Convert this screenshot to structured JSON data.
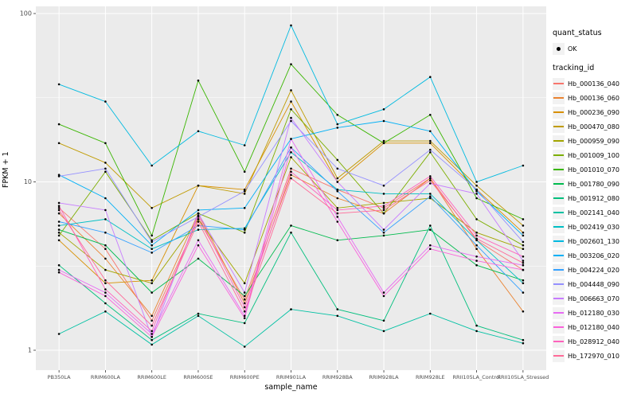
{
  "panel": {
    "bg": "#EBEBEB",
    "grid": "#FFFFFF",
    "tick_color": "#333333",
    "tick_label_color": "#4D4D4D"
  },
  "legend": {
    "quant_status": {
      "title": "quant_status",
      "items": [
        {
          "label": "OK",
          "shape": "point",
          "color": "#000000"
        }
      ]
    },
    "tracking_id": {
      "title": "tracking_id"
    }
  },
  "chart_data": {
    "type": "line",
    "title": "",
    "xlabel": "sample_name",
    "ylabel": "FPKM + 1",
    "y_scale": "log10",
    "ylim": [
      1,
      100
    ],
    "y_ticks": [
      1,
      10,
      100
    ],
    "y_tick_labels": [
      "1",
      "10",
      "100"
    ],
    "y_minor_ticks": [
      3.162,
      31.62
    ],
    "grid": true,
    "legend_position": "right",
    "point_color": "#000000",
    "categories": [
      "PB350LA",
      "RRIM600LA",
      "RRIM600LE",
      "RRIM600SE",
      "RRIM600PE",
      "RRIM901LA",
      "RRIM928BA",
      "RRIM928LA",
      "RRIM928LE",
      "RRII105LA_Control",
      "RRII105LA_Stressed"
    ],
    "series": [
      {
        "name": "Hb_000136_040",
        "color": "#F8766D",
        "values": [
          7.0,
          4.0,
          1.5,
          6.0,
          2.0,
          12.0,
          9.0,
          7.0,
          10.5,
          4.5,
          3.0
        ]
      },
      {
        "name": "Hb_000136_060",
        "color": "#EA8331",
        "values": [
          6.5,
          3.5,
          1.6,
          6.5,
          1.9,
          11.0,
          8.0,
          6.5,
          10.5,
          4.0,
          1.7
        ]
      },
      {
        "name": "Hb_000236_090",
        "color": "#D89000",
        "values": [
          4.5,
          2.5,
          2.6,
          9.5,
          9.0,
          30.0,
          10.0,
          17.0,
          17.0,
          9.0,
          5.0
        ]
      },
      {
        "name": "Hb_000470_080",
        "color": "#C09B00",
        "values": [
          17.0,
          13.0,
          7.0,
          9.5,
          8.5,
          35.0,
          10.5,
          17.5,
          17.5,
          9.5,
          5.5
        ]
      },
      {
        "name": "Hb_000959_090",
        "color": "#A3A500",
        "values": [
          5.0,
          3.0,
          2.5,
          6.0,
          2.5,
          14.0,
          7.0,
          7.5,
          8.0,
          5.0,
          4.0
        ]
      },
      {
        "name": "Hb_001009_100",
        "color": "#7CAE00",
        "values": [
          4.8,
          11.5,
          4.5,
          6.5,
          5.0,
          27.0,
          13.5,
          6.5,
          15.0,
          6.0,
          4.2
        ]
      },
      {
        "name": "Hb_001010_070",
        "color": "#39B600",
        "values": [
          22.0,
          17.0,
          4.8,
          40.0,
          11.5,
          50.0,
          25.0,
          17.0,
          25.0,
          8.0,
          6.0
        ]
      },
      {
        "name": "Hb_001780_090",
        "color": "#00BB4E",
        "values": [
          5.2,
          4.2,
          2.2,
          3.5,
          2.1,
          5.5,
          4.5,
          4.8,
          5.2,
          3.2,
          2.6
        ]
      },
      {
        "name": "Hb_001912_080",
        "color": "#00BF7D",
        "values": [
          3.2,
          1.9,
          1.15,
          1.65,
          1.45,
          5.0,
          1.75,
          1.5,
          5.5,
          1.4,
          1.15
        ]
      },
      {
        "name": "Hb_002141_040",
        "color": "#00C1A3",
        "values": [
          1.25,
          1.7,
          1.08,
          1.6,
          1.05,
          1.75,
          1.6,
          1.3,
          1.65,
          1.3,
          1.1
        ]
      },
      {
        "name": "Hb_002419_030",
        "color": "#00BFC4",
        "values": [
          5.5,
          6.0,
          4.0,
          5.2,
          5.3,
          15.0,
          9.0,
          8.5,
          8.5,
          4.5,
          2.5
        ]
      },
      {
        "name": "Hb_002601_130",
        "color": "#00BAE0",
        "values": [
          38.0,
          30.0,
          12.5,
          20.0,
          16.5,
          85.0,
          22.0,
          27.0,
          42.0,
          10.0,
          12.5
        ]
      },
      {
        "name": "Hb_003206_020",
        "color": "#00B0F6",
        "values": [
          11.0,
          8.0,
          4.2,
          6.8,
          7.0,
          18.0,
          21.0,
          23.0,
          20.0,
          8.8,
          4.8
        ]
      },
      {
        "name": "Hb_004224_020",
        "color": "#35A2FF",
        "values": [
          5.8,
          5.0,
          3.8,
          5.5,
          5.2,
          16.0,
          8.8,
          5.0,
          8.2,
          4.2,
          2.2
        ]
      },
      {
        "name": "Hb_004448_090",
        "color": "#9590FF",
        "values": [
          10.8,
          12.0,
          4.4,
          6.2,
          8.8,
          23.0,
          12.0,
          9.5,
          15.5,
          9.0,
          4.4
        ]
      },
      {
        "name": "Hb_006663_070",
        "color": "#C77CFF",
        "values": [
          7.5,
          6.8,
          1.2,
          6.5,
          2.2,
          24.0,
          10.0,
          5.2,
          9.8,
          8.5,
          3.4
        ]
      },
      {
        "name": "Hb_012180_030",
        "color": "#E76BF3",
        "values": [
          3.0,
          2.2,
          1.25,
          4.5,
          1.6,
          18.0,
          6.2,
          2.2,
          4.2,
          3.6,
          3.2
        ]
      },
      {
        "name": "Hb_012180_040",
        "color": "#FA62DB",
        "values": [
          2.9,
          2.1,
          1.2,
          4.2,
          1.55,
          16.0,
          5.8,
          2.1,
          4.0,
          3.4,
          3.0
        ]
      },
      {
        "name": "Hb_028912_040",
        "color": "#FF62BC",
        "values": [
          7.2,
          2.3,
          1.3,
          6.3,
          1.8,
          11.5,
          6.8,
          7.2,
          10.8,
          4.8,
          3.6
        ]
      },
      {
        "name": "Hb_172970_010",
        "color": "#FF6A98",
        "values": [
          6.8,
          2.6,
          1.4,
          5.8,
          1.7,
          10.5,
          6.5,
          6.8,
          10.2,
          4.6,
          3.3
        ]
      }
    ]
  }
}
